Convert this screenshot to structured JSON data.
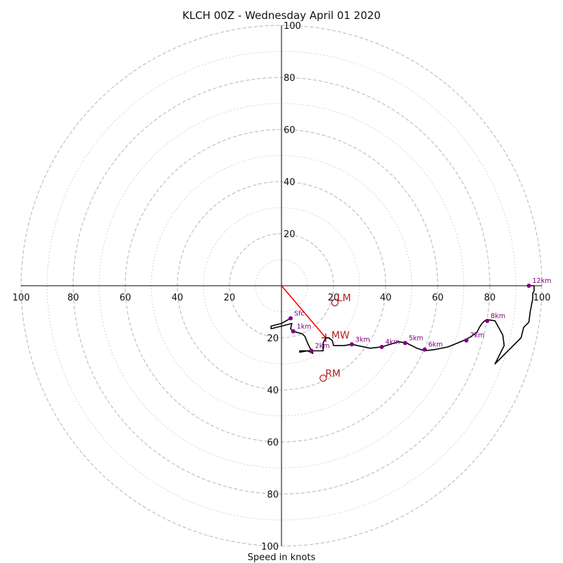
{
  "chart_data": {
    "type": "hodograph",
    "title": "KLCH 00Z - Wednesday April 01 2020",
    "xlabel": "Speed in knots",
    "rings_major": [
      20,
      40,
      60,
      80,
      100
    ],
    "rings_minor": [
      10,
      30,
      50,
      70,
      90
    ],
    "tick_labels": [
      "20",
      "40",
      "60",
      "80",
      "100"
    ],
    "range": [
      -100,
      100
    ],
    "grid": true,
    "colors": {
      "trace": "#000000",
      "height_marker": "#800080",
      "motion": "#b22222",
      "mean_wind_line": "#ff0000",
      "ring": "#bbbbbb",
      "axis": "#000000"
    },
    "trace": [
      [
        3.5,
        -12.5
      ],
      [
        0,
        -14.5
      ],
      [
        -4,
        -15.5
      ],
      [
        -4,
        -16.5
      ],
      [
        0,
        -15.5
      ],
      [
        4,
        -14.5
      ],
      [
        3.5,
        -16.5
      ],
      [
        4.5,
        -17.5
      ],
      [
        8,
        -18.5
      ],
      [
        9,
        -19.5
      ],
      [
        10,
        -22
      ],
      [
        11.5,
        -25
      ],
      [
        7,
        -25
      ],
      [
        7,
        -25.5
      ],
      [
        10,
        -25
      ],
      [
        12,
        -26
      ],
      [
        12,
        -25
      ],
      [
        16,
        -25
      ],
      [
        16,
        -22
      ],
      [
        17,
        -20
      ],
      [
        18,
        -20
      ],
      [
        19.5,
        -21
      ],
      [
        20,
        -23
      ],
      [
        24,
        -23
      ],
      [
        27,
        -22.5
      ],
      [
        34,
        -24
      ],
      [
        38.5,
        -23.5
      ],
      [
        45,
        -21.5
      ],
      [
        48,
        -22
      ],
      [
        52,
        -24
      ],
      [
        55,
        -25
      ],
      [
        59,
        -24.5
      ],
      [
        64,
        -23.5
      ],
      [
        70,
        -21
      ],
      [
        72,
        -20
      ],
      [
        75,
        -18
      ],
      [
        76,
        -16
      ],
      [
        77,
        -14.5
      ],
      [
        78,
        -13.5
      ],
      [
        79,
        -13
      ],
      [
        82,
        -13.5
      ],
      [
        85,
        -19
      ],
      [
        85.5,
        -23
      ],
      [
        82,
        -30
      ],
      [
        86,
        -26
      ],
      [
        92,
        -20
      ],
      [
        93,
        -16
      ],
      [
        95,
        -14
      ],
      [
        95.5,
        -10
      ],
      [
        96.5,
        -5
      ],
      [
        96.5,
        -3
      ],
      [
        97,
        -2
      ],
      [
        97,
        0
      ],
      [
        95,
        0
      ]
    ],
    "height_points": [
      {
        "label": "Sfc",
        "u": 3.5,
        "v": -12.5
      },
      {
        "label": "1km",
        "u": 4.5,
        "v": -17.5
      },
      {
        "label": "2km",
        "u": 11.5,
        "v": -25
      },
      {
        "label": "3km",
        "u": 27,
        "v": -22.5
      },
      {
        "label": "4km",
        "u": 38.5,
        "v": -23.5
      },
      {
        "label": "5km",
        "u": 47.5,
        "v": -22
      },
      {
        "label": "6km",
        "u": 55,
        "v": -24.5
      },
      {
        "label": "7km",
        "u": 71,
        "v": -21
      },
      {
        "label": "8km",
        "u": 79,
        "v": -13.5
      },
      {
        "label": "12km",
        "u": 95,
        "v": 0
      }
    ],
    "storm_motions": [
      {
        "label": "LM",
        "u": 20.5,
        "v": -6.5
      },
      {
        "label": "RM",
        "u": 16,
        "v": -35.5
      }
    ],
    "mean_wind": {
      "label": "MW",
      "u": 17,
      "v": -20
    }
  }
}
